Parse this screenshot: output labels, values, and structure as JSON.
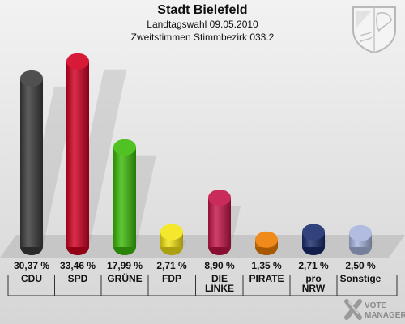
{
  "header": {
    "title": "Stadt Bielefeld",
    "subtitle": "Landtagswahl 09.05.2010",
    "subtitle2": "Zweitstimmen Stimmbezirk 033.2"
  },
  "logo": {
    "line1": "VOTE",
    "line2": "MANAGER",
    "icon": "vote-manager-x-icon"
  },
  "crest": {
    "icon": "coat-of-arms-icon"
  },
  "chart_data": {
    "type": "bar",
    "categories": [
      "CDU",
      "SPD",
      "GRÜNE",
      "FDP",
      "DIE LINKE",
      "PIRATE",
      "pro NRW",
      "Sonstige"
    ],
    "category_lines": [
      [
        "CDU"
      ],
      [
        "SPD"
      ],
      [
        "GRÜNE"
      ],
      [
        "FDP"
      ],
      [
        "DIE",
        "LINKE"
      ],
      [
        "PIRATE"
      ],
      [
        "pro",
        "NRW"
      ],
      [
        "Sonstige"
      ]
    ],
    "values": [
      30.37,
      33.46,
      17.99,
      2.71,
      8.9,
      1.35,
      2.71,
      2.5
    ],
    "value_labels": [
      "30,37 %",
      "33,46 %",
      "17,99 %",
      "2,71 %",
      "8,90 %",
      "1,35 %",
      "2,71 %",
      "2,50 %"
    ],
    "colors": [
      "#3c3c3c",
      "#d10022",
      "#3dbb0a",
      "#f4e415",
      "#c41548",
      "#ee7d00",
      "#1a2d6e",
      "#a9b5de"
    ],
    "ylim": [
      0,
      34
    ]
  }
}
